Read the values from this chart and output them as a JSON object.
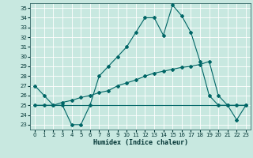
{
  "xlabel": "Humidex (Indice chaleur)",
  "xlim": [
    -0.5,
    23.5
  ],
  "ylim": [
    22.5,
    35.5
  ],
  "yticks": [
    23,
    24,
    25,
    26,
    27,
    28,
    29,
    30,
    31,
    32,
    33,
    34,
    35
  ],
  "xticks": [
    0,
    1,
    2,
    3,
    4,
    5,
    6,
    7,
    8,
    9,
    10,
    11,
    12,
    13,
    14,
    15,
    16,
    17,
    18,
    19,
    20,
    21,
    22,
    23
  ],
  "bg_color": "#c8e8e0",
  "grid_color": "#ffffff",
  "line_color": "#006666",
  "line1_x": [
    0,
    1,
    2,
    3,
    4,
    5,
    6,
    7,
    8,
    9,
    10,
    11,
    12,
    13,
    14,
    15,
    16,
    17,
    18,
    19,
    20,
    21,
    22,
    23
  ],
  "line1_y": [
    27,
    26,
    25,
    25,
    23,
    23,
    25,
    28,
    29,
    30,
    31,
    32.5,
    34,
    34,
    32.2,
    35.3,
    34.2,
    32.5,
    29.5,
    26,
    25,
    25,
    23.5,
    25
  ],
  "line2_x": [
    0,
    1,
    2,
    3,
    4,
    5,
    6,
    7,
    8,
    9,
    10,
    11,
    12,
    13,
    14,
    15,
    16,
    17,
    18,
    19,
    20,
    21,
    22,
    23
  ],
  "line2_y": [
    25,
    25,
    25,
    25.3,
    25.5,
    25.8,
    26,
    26.3,
    26.5,
    27,
    27.3,
    27.6,
    28,
    28.3,
    28.5,
    28.7,
    28.9,
    29,
    29.2,
    29.5,
    26,
    25,
    25,
    25
  ],
  "line3_x": [
    0,
    23
  ],
  "line3_y": [
    25,
    25
  ]
}
